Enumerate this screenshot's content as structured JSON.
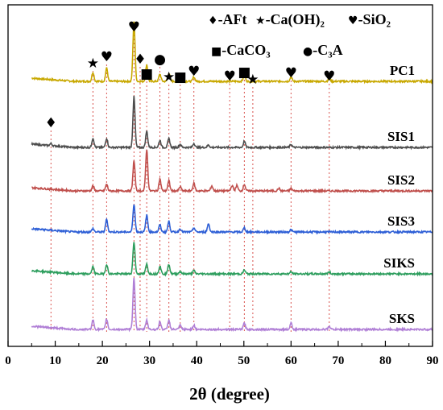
{
  "chart_data": {
    "type": "line",
    "xlabel": "2θ (degree)",
    "xlim": [
      0,
      90
    ],
    "x_ticks": [
      "0",
      "10",
      "20",
      "30",
      "40",
      "50",
      "60",
      "70",
      "80",
      "90"
    ],
    "legend": [
      {
        "marker": "♦",
        "name": "-AFt"
      },
      {
        "marker": "★",
        "name": "-Ca(OH)₂"
      },
      {
        "marker": "♥",
        "name": "-SiO₂"
      },
      {
        "marker": "■",
        "name": "-CaCO₃"
      },
      {
        "marker": "●",
        "name": "-C₃A"
      }
    ],
    "series": [
      {
        "name": "PC1",
        "color": "#c8a800",
        "peaks": [
          [
            18.0,
            0.15
          ],
          [
            20.9,
            0.22
          ],
          [
            26.7,
            1.0
          ],
          [
            29.4,
            0.28
          ],
          [
            32.2,
            0.12
          ],
          [
            34.1,
            0.14
          ],
          [
            36.5,
            0.08
          ],
          [
            39.4,
            0.07
          ],
          [
            50.1,
            0.12
          ],
          [
            60.0,
            0.07
          ],
          [
            68.1,
            0.05
          ]
        ]
      },
      {
        "name": "SIS1",
        "color": "#4d4d4d",
        "peaks": [
          [
            9.1,
            0.04
          ],
          [
            18.0,
            0.18
          ],
          [
            20.9,
            0.18
          ],
          [
            26.7,
            1.0
          ],
          [
            29.4,
            0.32
          ],
          [
            32.2,
            0.14
          ],
          [
            34.1,
            0.17
          ],
          [
            36.5,
            0.06
          ],
          [
            39.4,
            0.08
          ],
          [
            42.5,
            0.05
          ],
          [
            50.1,
            0.12
          ],
          [
            60.0,
            0.06
          ]
        ]
      },
      {
        "name": "SIS2",
        "color": "#c0504d",
        "peaks": [
          [
            18.0,
            0.12
          ],
          [
            20.9,
            0.16
          ],
          [
            26.7,
            0.72
          ],
          [
            29.4,
            1.0
          ],
          [
            32.2,
            0.28
          ],
          [
            34.1,
            0.24
          ],
          [
            36.5,
            0.1
          ],
          [
            39.4,
            0.18
          ],
          [
            43.2,
            0.12
          ],
          [
            47.5,
            0.13
          ],
          [
            48.5,
            0.13
          ],
          [
            50.1,
            0.16
          ],
          [
            57.4,
            0.06
          ],
          [
            60.0,
            0.06
          ]
        ]
      },
      {
        "name": "SIS3",
        "color": "#2e5fd6",
        "peaks": [
          [
            18.0,
            0.12
          ],
          [
            20.9,
            0.45
          ],
          [
            26.7,
            1.0
          ],
          [
            29.4,
            0.6
          ],
          [
            32.2,
            0.25
          ],
          [
            34.1,
            0.38
          ],
          [
            36.5,
            0.12
          ],
          [
            39.4,
            0.15
          ],
          [
            42.5,
            0.3
          ],
          [
            50.1,
            0.15
          ],
          [
            60.0,
            0.08
          ]
        ]
      },
      {
        "name": "SIKS",
        "color": "#2e9e5e",
        "peaks": [
          [
            18.0,
            0.22
          ],
          [
            20.9,
            0.3
          ],
          [
            26.7,
            1.0
          ],
          [
            29.4,
            0.3
          ],
          [
            32.2,
            0.25
          ],
          [
            34.1,
            0.3
          ],
          [
            36.5,
            0.08
          ],
          [
            39.4,
            0.1
          ],
          [
            50.1,
            0.12
          ],
          [
            60.0,
            0.06
          ],
          [
            68.1,
            0.06
          ]
        ]
      },
      {
        "name": "SKS",
        "color": "#b07fd6",
        "peaks": [
          [
            18.0,
            0.18
          ],
          [
            20.9,
            0.2
          ],
          [
            26.7,
            1.0
          ],
          [
            29.4,
            0.18
          ],
          [
            32.2,
            0.15
          ],
          [
            34.1,
            0.18
          ],
          [
            36.5,
            0.08
          ],
          [
            39.4,
            0.08
          ],
          [
            50.1,
            0.12
          ],
          [
            60.0,
            0.12
          ],
          [
            68.1,
            0.06
          ]
        ]
      }
    ],
    "phase_markers": [
      {
        "symbol": "♦",
        "x": 9.1
      },
      {
        "symbol": "★",
        "x": 18.0
      },
      {
        "symbol": "♥",
        "x": 20.9
      },
      {
        "symbol": "♥",
        "x": 26.7
      },
      {
        "symbol": "♦",
        "x": 28.0
      },
      {
        "symbol": "■",
        "x": 29.4
      },
      {
        "symbol": "●",
        "x": 32.2
      },
      {
        "symbol": "★",
        "x": 34.1
      },
      {
        "symbol": "■",
        "x": 36.5
      },
      {
        "symbol": "♥",
        "x": 39.4
      },
      {
        "symbol": "♥",
        "x": 47.0
      },
      {
        "symbol": "■",
        "x": 50.1
      },
      {
        "symbol": "★",
        "x": 51.9
      },
      {
        "symbol": "♥",
        "x": 60.0
      },
      {
        "symbol": "♥",
        "x": 68.1
      }
    ]
  }
}
